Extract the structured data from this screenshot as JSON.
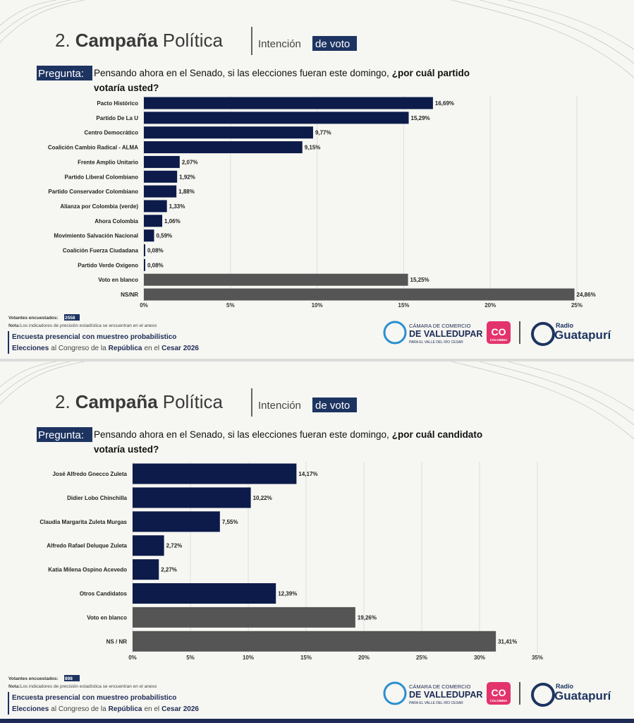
{
  "chart_data": [
    {
      "type": "bar",
      "orientation": "horizontal",
      "title_parts": [
        "2.",
        "Campaña",
        "Política"
      ],
      "section_parts": [
        "Intención",
        "de voto"
      ],
      "question_label": "Pregunta:",
      "question_parts": [
        "Pensando ahora en el Senado, si las elecciones fueran este domingo,",
        "¿por cuál partido",
        "votaría usted?"
      ],
      "categories": [
        "Pacto Histórico",
        "Partido De La U",
        "Centro Democrático",
        "Coalición Cambio Radical - ALMA",
        "Frente Amplio Unitario",
        "Partido Liberal Colombiano",
        "Partido Conservador Colombiano",
        "Alianza por Colombia (verde)",
        "Ahora Colombia",
        "Movimiento Salvación Nacional",
        "Coalición Fuerza Ciudadana",
        "Partido Verde Oxígeno",
        "Voto en blanco",
        "NS/NR"
      ],
      "values": [
        16.69,
        15.29,
        9.77,
        9.15,
        2.07,
        1.92,
        1.88,
        1.33,
        1.06,
        0.59,
        0.08,
        0.08,
        15.25,
        24.86
      ],
      "value_labels": [
        "16,69%",
        "15,29%",
        "9,77%",
        "9,15%",
        "2,07%",
        "1,92%",
        "1,88%",
        "1,33%",
        "1,06%",
        "0,59%",
        "0,08%",
        "0,08%",
        "15,25%",
        "24,86%"
      ],
      "colors": [
        "#0d1b4a",
        "#0d1b4a",
        "#0d1b4a",
        "#0d1b4a",
        "#0d1b4a",
        "#0d1b4a",
        "#0d1b4a",
        "#0d1b4a",
        "#0d1b4a",
        "#0d1b4a",
        "#0d1b4a",
        "#0d1b4a",
        "#555555",
        "#555555"
      ],
      "xlim": [
        0,
        25
      ],
      "xticks": [
        {
          "value": 0,
          "label": "0%"
        },
        {
          "value": 5,
          "label": "5%"
        },
        {
          "value": 10,
          "label": "10%"
        },
        {
          "value": 15,
          "label": "15%"
        },
        {
          "value": 20,
          "label": "20%"
        },
        {
          "value": 25,
          "label": "25%"
        }
      ],
      "grid": true,
      "footer": {
        "voters_label": "Votantes encuestados:",
        "voters": 2558,
        "note_label": "Nota:",
        "note": "Los indicadores de precisión estadística se encuentran en el anexo",
        "survey": "Encuesta presencial con muestreo probabilístico",
        "election_parts": [
          "Elecciones",
          "al Congreso de la",
          "República",
          "en el",
          "Cesar 2026"
        ],
        "logos": [
          "CÁMARA DE COMERCIO",
          "DE VALLEDUPAR",
          "PARA EL VALLE DEL RÍO CESAR",
          "CO",
          "COLOMBIA",
          "Radio",
          "Guatapurí"
        ]
      }
    },
    {
      "type": "bar",
      "orientation": "horizontal",
      "title_parts": [
        "2.",
        "Campaña",
        "Política"
      ],
      "section_parts": [
        "Intención",
        "de voto"
      ],
      "question_label": "Pregunta:",
      "question_parts": [
        "Pensando ahora en el Senado, si las elecciones fueran este domingo,",
        "¿por cuál candidato",
        "votaría usted?"
      ],
      "categories": [
        "José Alfredo Gnecco Zuleta",
        "Didier Lobo Chinchilla",
        "Claudia Margarita Zuleta Murgas",
        "Alfredo Rafael Deluque Zuleta",
        "Katia Milena Ospino Acevedo",
        "Otros Candidatos",
        "Voto en blanco",
        "NS / NR"
      ],
      "values": [
        14.17,
        10.22,
        7.55,
        2.72,
        2.27,
        12.39,
        19.26,
        31.41
      ],
      "value_labels": [
        "14,17%",
        "10,22%",
        "7,55%",
        "2,72%",
        "2,27%",
        "12,39%",
        "19,26%",
        "31,41%"
      ],
      "colors": [
        "#0d1b4a",
        "#0d1b4a",
        "#0d1b4a",
        "#0d1b4a",
        "#0d1b4a",
        "#0d1b4a",
        "#555555",
        "#555555"
      ],
      "xlim": [
        0,
        35
      ],
      "xticks": [
        {
          "value": 0,
          "label": "0%"
        },
        {
          "value": 5,
          "label": "5%"
        },
        {
          "value": 10,
          "label": "10%"
        },
        {
          "value": 15,
          "label": "15%"
        },
        {
          "value": 20,
          "label": "20%"
        },
        {
          "value": 25,
          "label": "25%"
        },
        {
          "value": 30,
          "label": "30%"
        },
        {
          "value": 35,
          "label": "35%"
        }
      ],
      "grid": true,
      "footer": {
        "voters_label": "Votantes encuestados:",
        "voters": 898,
        "note_label": "Nota:",
        "note": "Los indicadores de precisión estadística se encuentran en el anexo",
        "survey": "Encuesta presencial con muestreo probabilístico",
        "election_parts": [
          "Elecciones",
          "al Congreso de la",
          "República",
          "en el",
          "Cesar 2026"
        ],
        "logos": [
          "CÁMARA DE COMERCIO",
          "DE VALLEDUPAR",
          "PARA EL VALLE DEL RÍO CESAR",
          "CO",
          "COLOMBIA",
          "Radio",
          "Guatapurí"
        ]
      }
    }
  ]
}
